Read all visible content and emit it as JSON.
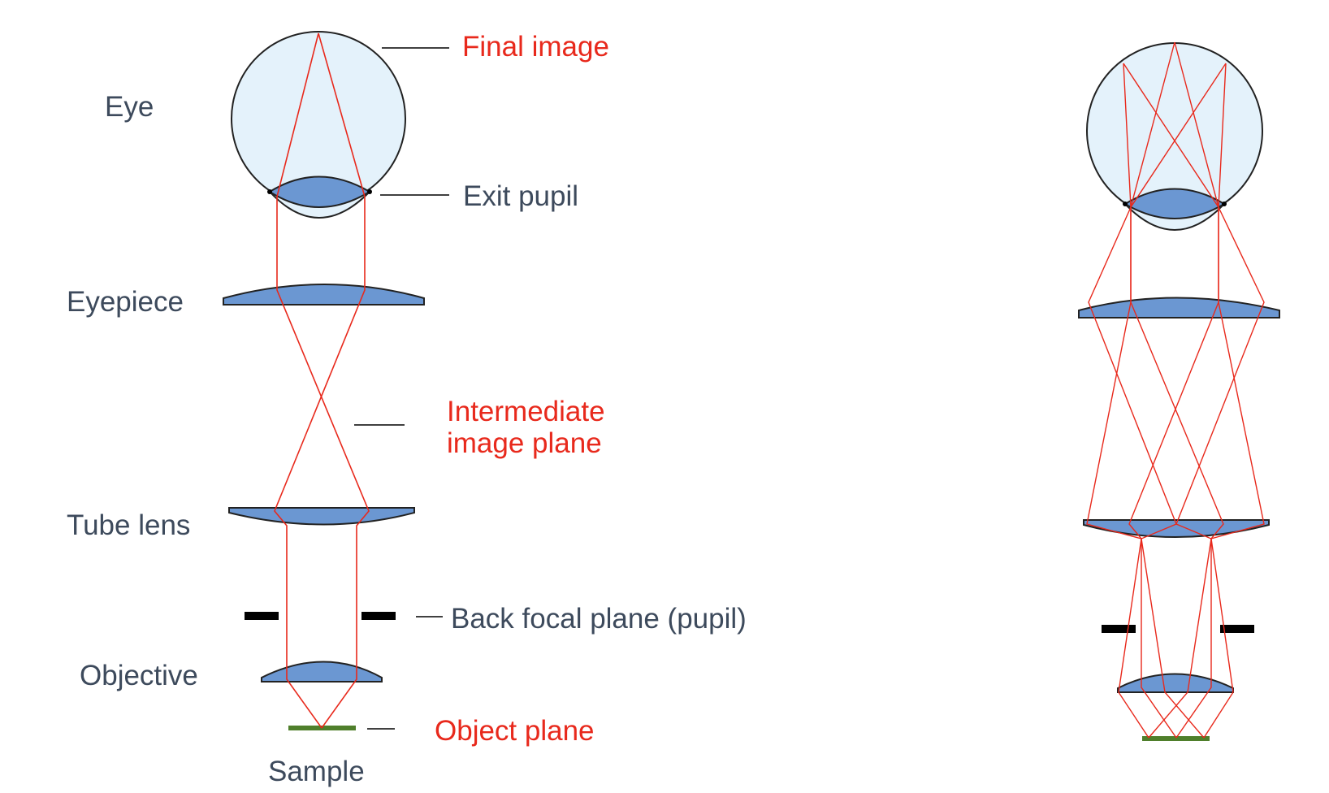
{
  "labels": {
    "eye": "Eye",
    "eyepiece": "Eyepiece",
    "tube_lens": "Tube lens",
    "objective": "Objective",
    "sample": "Sample",
    "exit_pupil": "Exit pupil",
    "back_focal_plane": "Back focal plane (pupil)",
    "final_image": "Final image",
    "intermediate_image_line1": "Intermediate",
    "intermediate_image_line2": "image plane",
    "object_plane": "Object plane"
  },
  "colors": {
    "ray": "#e8291c",
    "lens_fill": "#6b97d2",
    "eye_fill": "#e4f2fb",
    "sample": "#4f7f2b",
    "stop": "#000000",
    "label_dark": "#3d4a5c",
    "label_red": "#e8291c"
  }
}
